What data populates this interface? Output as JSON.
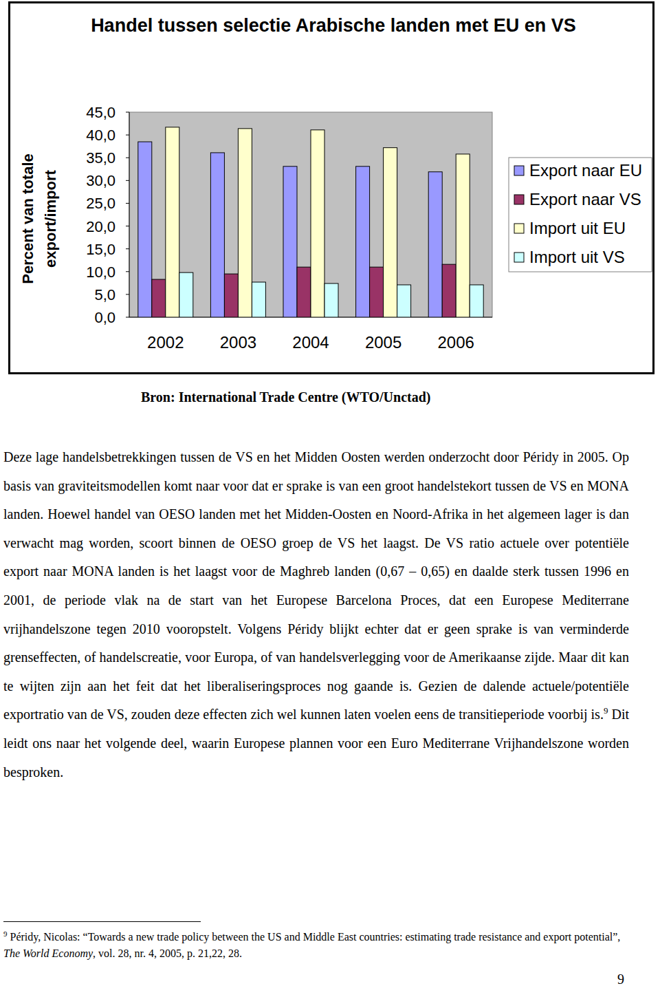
{
  "chart_data": {
    "type": "bar",
    "title": "Handel tussen selectie Arabische landen met EU en VS",
    "y_label": "Percent van totale export/import",
    "categories": [
      "2002",
      "2003",
      "2004",
      "2005",
      "2006"
    ],
    "series": [
      {
        "name": "Export naar EU",
        "color": "#9999ff",
        "values": [
          38.5,
          36.1,
          33.1,
          33.1,
          31.9
        ]
      },
      {
        "name": "Export naar VS",
        "color": "#993366",
        "values": [
          8.3,
          9.5,
          11.0,
          11.0,
          11.6
        ]
      },
      {
        "name": "Import uit EU",
        "color": "#ffffcc",
        "values": [
          41.7,
          41.4,
          41.1,
          37.2,
          35.8
        ]
      },
      {
        "name": "Import uit VS",
        "color": "#ccffff",
        "values": [
          9.8,
          7.7,
          7.4,
          7.1,
          7.1
        ]
      }
    ],
    "ylim": [
      0,
      45
    ],
    "yticks": [
      {
        "value": 0,
        "label": "0,0"
      },
      {
        "value": 5,
        "label": "5,0"
      },
      {
        "value": 10,
        "label": "10,0"
      },
      {
        "value": 15,
        "label": "15,0"
      },
      {
        "value": 20,
        "label": "20,0"
      },
      {
        "value": 25,
        "label": "25,0"
      },
      {
        "value": 30,
        "label": "30,0"
      },
      {
        "value": 35,
        "label": "35,0"
      },
      {
        "value": 40,
        "label": "40,0"
      },
      {
        "value": 45,
        "label": "45,0"
      }
    ],
    "grid": false,
    "legend": "right"
  },
  "document": {
    "source": "Bron: International Trade Centre (WTO/Unctad)",
    "paragraph": {
      "before": "Deze lage handelsbetrekkingen tussen de VS en het Midden Oosten werden onderzocht door Péridy in 2005. Op basis van graviteitsmodellen komt naar voor dat er sprake is van een groot handelstekort tussen de VS en MONA landen. Hoewel handel van OESO landen met het Midden-Oosten en Noord-Afrika in het algemeen lager is dan verwacht mag worden, scoort binnen de OESO groep de VS het laagst. De VS ratio actuele over potentiële export naar MONA landen is het laagst voor de Maghreb landen (0,67 – 0,65) en daalde sterk tussen 1996 en 2001, de periode vlak na de start van het Europese Barcelona Proces, dat een Europese Mediterrane vrijhandelszone tegen 2010 vooropstelt. Volgens Péridy blijkt echter dat er geen sprake is van verminderde grenseffecten, of handelscreatie, voor Europa, of van handelsverlegging voor de Amerikaanse zijde. Maar dit kan te wijten zijn aan het feit dat het liberaliseringsproces nog gaande is. Gezien de dalende actuele/potentiële exportratio van de VS, zouden deze effecten zich wel kunnen laten voelen eens de transitieperiode voorbij is.",
      "footnote_ref": "9",
      "after": " Dit leidt ons naar het volgende deel, waarin Europese plannen voor een Euro Mediterrane Vrijhandelszone worden besproken."
    },
    "footnote": {
      "number": "9",
      "text_before": " Péridy, Nicolas: “Towards a new trade policy between the US and Middle East countries: estimating trade resistance and export potential”, ",
      "italic": "The World Economy",
      "text_after": ", vol. 28, nr. 4, 2005, p. 21,22, 28."
    },
    "page_number": "9"
  }
}
